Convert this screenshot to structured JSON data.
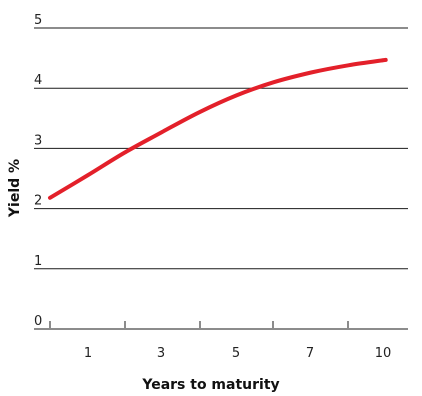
{
  "chart_data": {
    "type": "line",
    "title": "",
    "xlabel": "Years to maturity",
    "ylabel": "Yield %",
    "x_categories": [
      "1",
      "3",
      "5",
      "7",
      "10"
    ],
    "x_category_values": [
      1,
      3,
      5,
      7,
      10
    ],
    "ylim": [
      0,
      5
    ],
    "yticks": [
      0,
      1,
      2,
      3,
      4,
      5
    ],
    "grid": "horizontal",
    "legend": "none",
    "series": [
      {
        "color": "#e3202a",
        "points": [
          {
            "x": 0,
            "y": 2.18
          },
          {
            "x": 1,
            "y": 2.55
          },
          {
            "x": 2,
            "y": 2.93
          },
          {
            "x": 3,
            "y": 3.27
          },
          {
            "x": 4,
            "y": 3.6
          },
          {
            "x": 5,
            "y": 3.88
          },
          {
            "x": 6,
            "y": 4.1
          },
          {
            "x": 7,
            "y": 4.26
          },
          {
            "x": 8,
            "y": 4.38
          },
          {
            "x": 9,
            "y": 4.47
          }
        ]
      }
    ]
  }
}
